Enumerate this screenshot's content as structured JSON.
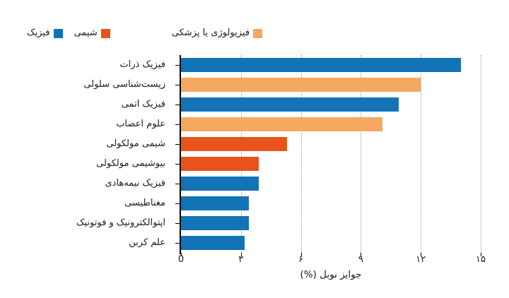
{
  "legend": {
    "items": [
      {
        "id": "physics",
        "label": "فیزیک",
        "color": "#1273b7"
      },
      {
        "id": "chemistry",
        "label": "شیمی",
        "color": "#e8531b"
      },
      {
        "id": "physiology_medicine",
        "label": "فیزیولوژی یا پزشکی",
        "color": "#f5a860"
      }
    ],
    "position": "top"
  },
  "chart_data": {
    "type": "bar",
    "orientation": "horizontal",
    "title": "",
    "xlabel": "جوایز نوبل (%)",
    "ylabel": "",
    "xlim": [
      0,
      15
    ],
    "grid": "vertical dotted",
    "legend_position": "top",
    "categories": [
      "فیزیک ذرات",
      "زیست‌شناسی سلولی",
      "فیزیک اتمی",
      "علوم اعصاب",
      "شیمی مولکولی",
      "بیوشیمی مولکولی",
      "فیزیک نیمه‌هادی",
      "مغناطیسی",
      "اپتوالکترونیک و فوتونیک",
      "علم کربن"
    ],
    "values": [
      14.0,
      12.0,
      10.9,
      10.1,
      5.3,
      3.9,
      3.9,
      3.4,
      3.4,
      3.2
    ],
    "series_of_bars": [
      "فیزیک",
      "فیزیولوژی یا پزشکی",
      "فیزیک",
      "فیزیولوژی یا پزشکی",
      "شیمی",
      "شیمی",
      "فیزیک",
      "فیزیک",
      "فیزیک",
      "فیزیک"
    ],
    "bar_colors": [
      "#1273b7",
      "#f5a860",
      "#1273b7",
      "#f5a860",
      "#e8531b",
      "#e8531b",
      "#1273b7",
      "#1273b7",
      "#1273b7",
      "#1273b7"
    ],
    "xticks": [
      "0",
      "۳",
      "۶",
      "۹",
      "۱۲",
      "۱۵"
    ],
    "xtick_values": [
      0,
      3,
      6,
      9,
      12,
      15
    ]
  },
  "colors": {
    "physics_blue": "#1273b7",
    "chemistry_orange_red": "#e8531b",
    "physiology_light_orange": "#f5a860",
    "axis_black": "#000000",
    "grid_gray": "#9b9b9b",
    "background": "#ffffff"
  }
}
